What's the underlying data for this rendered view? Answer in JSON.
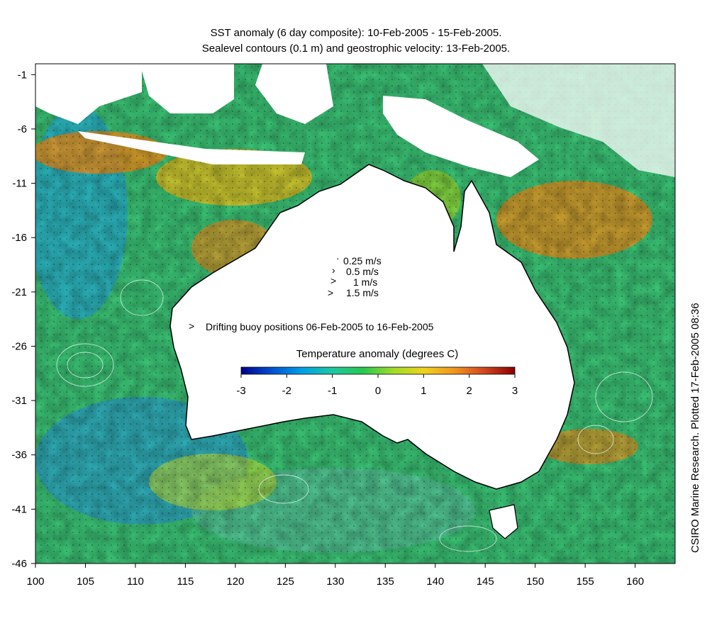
{
  "title": {
    "line1": "SST anomaly (6 day composite): 10-Feb-2005 - 15-Feb-2005.",
    "line2": "Sealevel contours (0.1 m) and geostrophic velocity: 13-Feb-2005."
  },
  "credit": "CSIRO Marine Research. Plotted 17-Feb-2005 08:36",
  "axes": {
    "lon_ticks": [
      "100",
      "105",
      "110",
      "115",
      "120",
      "125",
      "130",
      "135",
      "140",
      "145",
      "150",
      "155",
      "160"
    ],
    "lat_ticks": [
      "-1",
      "-6",
      "-11",
      "-16",
      "-21",
      "-26",
      "-31",
      "-36",
      "-41",
      "-46"
    ],
    "lon_range": [
      100,
      164
    ],
    "lat_range": [
      -46,
      0
    ]
  },
  "velocity_legend": {
    "items": [
      {
        "label": "0.25 m/s",
        "speed": 0.25
      },
      {
        "label": "0.5 m/s",
        "speed": 0.5
      },
      {
        "label": "1 m/s",
        "speed": 1
      },
      {
        "label": "1.5 m/s",
        "speed": 1.5
      }
    ]
  },
  "buoy_legend": {
    "label": "Drifting buoy positions 06-Feb-2005 to 16-Feb-2005",
    "color": "#ff00ff"
  },
  "colorbar": {
    "title": "Temperature anomaly (degrees C)",
    "ticks": [
      "-3",
      "-2",
      "-1",
      "0",
      "1",
      "2",
      "3"
    ],
    "range": [
      -3,
      3
    ],
    "colors": [
      "#00008b",
      "#0050d0",
      "#00a0e6",
      "#1ec8a0",
      "#28c850",
      "#a0dc28",
      "#f0d21e",
      "#f0961e",
      "#d2461e",
      "#8b0000"
    ]
  },
  "colors": {
    "ocean_base": "#3cc878",
    "land": "#ffffff",
    "coast": "#000000",
    "contour": "#ffffff",
    "warm_anomaly": "#f0961e",
    "cool_anomaly": "#28a0e6"
  }
}
